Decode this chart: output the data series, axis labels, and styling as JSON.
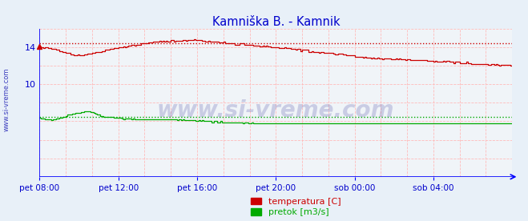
{
  "title": "Kamniška B. - Kamnik",
  "title_color": "#0000cc",
  "bg_color": "#e8f0f8",
  "plot_bg_color": "#f0f4f8",
  "grid_color": "#ffbbbb",
  "axis_color": "#0000ff",
  "ylabel_text": "www.si-vreme.com",
  "ylabel_color": "#0000aa",
  "xlim": [
    0,
    288
  ],
  "ylim": [
    0,
    16
  ],
  "yticks": [
    10,
    14
  ],
  "xtick_labels": [
    "pet 08:00",
    "pet 12:00",
    "pet 16:00",
    "pet 20:00",
    "sob 00:00",
    "sob 04:00"
  ],
  "xtick_positions": [
    0,
    48,
    96,
    144,
    192,
    240
  ],
  "temp_color": "#cc0000",
  "pretok_color": "#00aa00",
  "temp_max_line": 14.4,
  "pretok_max_line": 6.5,
  "legend_temp_label": "temperatura [C]",
  "legend_pretok_label": "pretok [m3/s]",
  "watermark": "www.si-vreme.com",
  "watermark_color": "#1a1a8c",
  "watermark_alpha": 0.18
}
